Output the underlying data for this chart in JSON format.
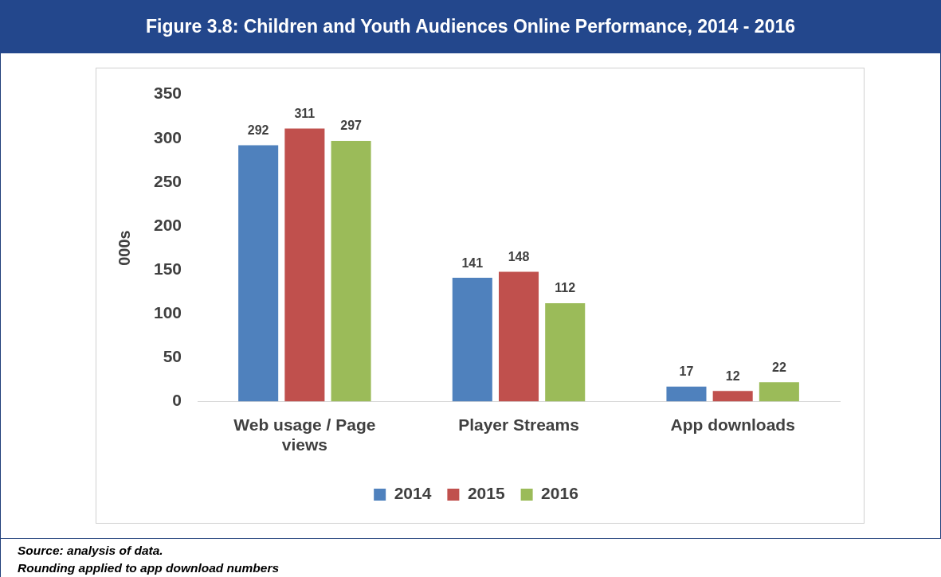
{
  "chart_data": {
    "type": "bar",
    "title": "Figure 3.8: Children and Youth Audiences Online Performance, 2014 - 2016",
    "ylabel": "000s",
    "categories": [
      [
        "Web usage / Page",
        "views"
      ],
      "Player Streams",
      "App downloads"
    ],
    "series": [
      {
        "name": "2014",
        "color": "#4f81bd",
        "values": [
          292,
          141,
          17
        ]
      },
      {
        "name": "2015",
        "color": "#c0504d",
        "values": [
          311,
          148,
          12
        ]
      },
      {
        "name": "2016",
        "color": "#9bbb59",
        "values": [
          297,
          112,
          22
        ]
      }
    ],
    "ylim": [
      0,
      350
    ],
    "yticks": [
      0,
      50,
      100,
      150,
      200,
      250,
      300,
      350
    ],
    "grid": false,
    "legend": "bottom",
    "data_labels": true,
    "annotations": [
      "Source: analysis of data.",
      "Rounding applied to app download numbers"
    ]
  }
}
